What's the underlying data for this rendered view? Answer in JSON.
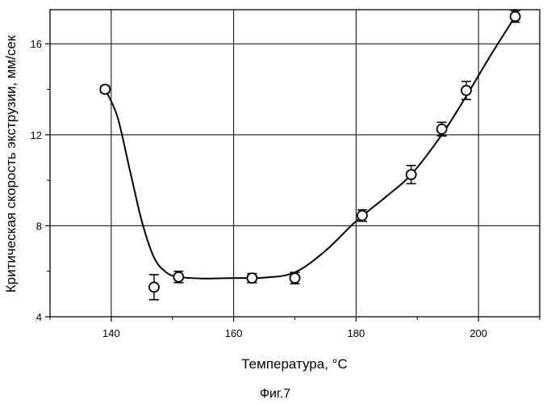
{
  "chart_data": {
    "type": "scatter",
    "xlabel": "Температура, °С",
    "ylabel": "Критическая скорость экструзии, мм/сек",
    "caption": "Фиг.7",
    "xlim": [
      130,
      210
    ],
    "ylim": [
      4,
      17.5
    ],
    "xticks": [
      140,
      160,
      180,
      200
    ],
    "yticks": [
      4,
      8,
      12,
      16
    ],
    "grid": true,
    "points": [
      {
        "x": 139,
        "y": 14.0,
        "err": 0.15
      },
      {
        "x": 147,
        "y": 5.3,
        "err": 0.55
      },
      {
        "x": 151,
        "y": 5.75,
        "err": 0.25
      },
      {
        "x": 163,
        "y": 5.7,
        "err": 0.2
      },
      {
        "x": 170,
        "y": 5.7,
        "err": 0.25
      },
      {
        "x": 181,
        "y": 8.45,
        "err": 0.25
      },
      {
        "x": 189,
        "y": 10.25,
        "err": 0.4
      },
      {
        "x": 194,
        "y": 12.25,
        "err": 0.3
      },
      {
        "x": 198,
        "y": 13.95,
        "err": 0.4
      },
      {
        "x": 206,
        "y": 17.2,
        "err": 0.25
      }
    ],
    "curve": [
      [
        139,
        14.0
      ],
      [
        141,
        12.8
      ],
      [
        143,
        10.5
      ],
      [
        145,
        8.2
      ],
      [
        147,
        6.6
      ],
      [
        149,
        5.95
      ],
      [
        151,
        5.75
      ],
      [
        155,
        5.68
      ],
      [
        160,
        5.7
      ],
      [
        165,
        5.72
      ],
      [
        170,
        5.95
      ],
      [
        175,
        6.9
      ],
      [
        180,
        8.2
      ],
      [
        185,
        9.3
      ],
      [
        189,
        10.25
      ],
      [
        194,
        12.0
      ],
      [
        198,
        13.7
      ],
      [
        202,
        15.5
      ],
      [
        206,
        17.2
      ]
    ]
  }
}
